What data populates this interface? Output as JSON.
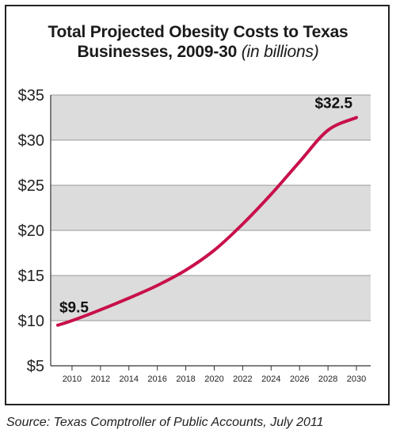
{
  "chart_data": {
    "type": "line",
    "title": "Total Projected Obesity Costs to Texas Businesses, 2009-30",
    "title_unit": "(in billions)",
    "x": [
      2009,
      2010,
      2012,
      2014,
      2016,
      2018,
      2020,
      2022,
      2024,
      2026,
      2028,
      2030
    ],
    "series": [
      {
        "values": [
          9.5,
          10.0,
          11.2,
          12.5,
          13.9,
          15.6,
          17.8,
          20.7,
          24.0,
          27.6,
          31.1,
          32.5
        ]
      }
    ],
    "xticks": [
      "2010",
      "2012",
      "2014",
      "2016",
      "2018",
      "2020",
      "2022",
      "2024",
      "2026",
      "2028",
      "2030"
    ],
    "yticks": [
      "$5",
      "$10",
      "$15",
      "$20",
      "$25",
      "$30",
      "$35"
    ],
    "ylim": [
      5,
      35
    ],
    "xlim": [
      2008.5,
      2031
    ],
    "annotations": [
      {
        "x": 2009,
        "y": 9.5,
        "text": "$9.5"
      },
      {
        "x": 2030,
        "y": 32.5,
        "text": "$32.5"
      }
    ],
    "colors": {
      "line": "#c8104a",
      "band": "#dcdcdc",
      "grid": "#9a9a9a"
    },
    "source": "Source: Texas Comptroller of Public Accounts, July 2011"
  }
}
